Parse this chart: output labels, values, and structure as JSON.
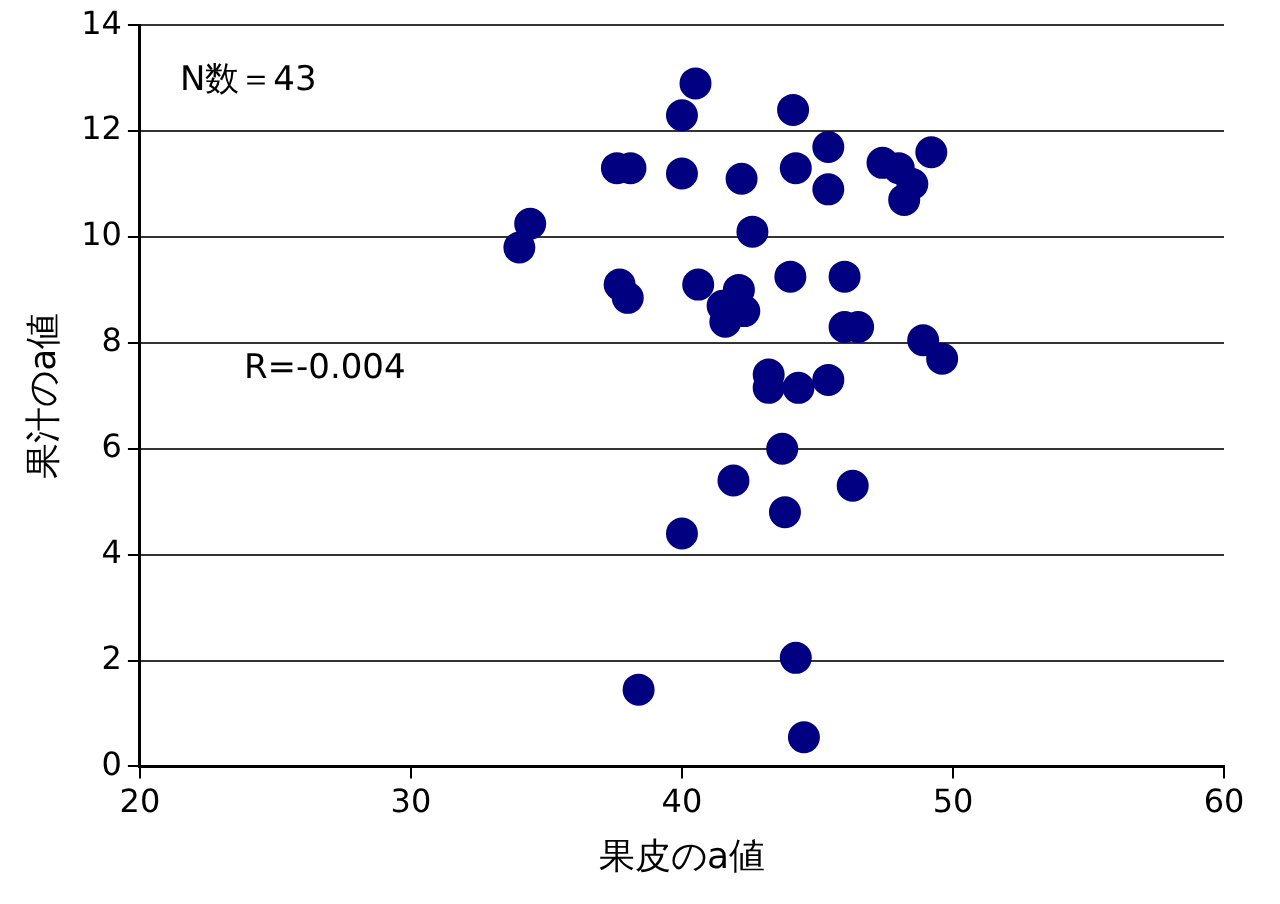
{
  "chart_data": {
    "type": "scatter",
    "xlabel": "果皮のa値",
    "ylabel": "果汁のa値",
    "annotations": [
      "N数＝43",
      "R=-0.004"
    ],
    "marker": "circle",
    "grid": "y",
    "legend": false,
    "xlim": [
      20,
      60
    ],
    "xticks": [
      20,
      30,
      40,
      50,
      60
    ],
    "ylim": [
      0,
      14
    ],
    "yticks": [
      0,
      2,
      4,
      6,
      8,
      10,
      12,
      14
    ],
    "series": [
      {
        "color": "#000080",
        "x": [
          40.5,
          40.0,
          44.1,
          45.4,
          37.6,
          38.1,
          40.0,
          42.2,
          44.2,
          45.4,
          47.4,
          48.0,
          48.5,
          48.2,
          49.2,
          42.6,
          34.4,
          34.0,
          37.7,
          38.0,
          40.6,
          42.1,
          41.5,
          42.3,
          41.6,
          44.0,
          46.0,
          46.0,
          46.5,
          48.9,
          49.6,
          43.2,
          43.2,
          44.3,
          45.4,
          43.7,
          41.9,
          46.3,
          43.8,
          40.0,
          44.2,
          38.4,
          44.5
        ],
        "values": [
          12.9,
          12.3,
          12.4,
          11.7,
          11.3,
          11.3,
          11.2,
          11.1,
          11.3,
          10.9,
          11.4,
          11.3,
          11.0,
          10.7,
          11.6,
          10.1,
          10.25,
          9.8,
          9.1,
          8.85,
          9.1,
          9.0,
          8.7,
          8.6,
          8.4,
          9.25,
          9.25,
          8.3,
          8.3,
          8.05,
          7.7,
          7.4,
          7.15,
          7.15,
          7.3,
          6.0,
          5.4,
          5.3,
          4.8,
          4.4,
          2.05,
          1.45,
          0.55
        ]
      }
    ]
  }
}
